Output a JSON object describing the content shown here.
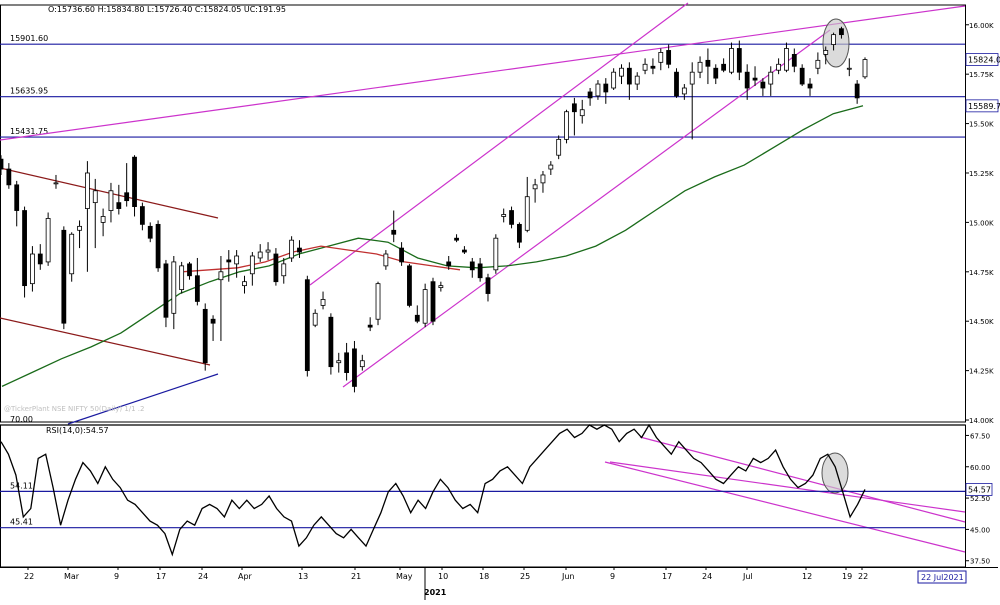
{
  "ohlc_header": "O:15736.60  H:15834.80  L:15726.40  C:15824.05  UC:191.95",
  "watermark": "@TickerPlant NSE NIFTY 50(Daily) 1/1 .2",
  "rsi_label": "RSI(14,0):54.57",
  "date_box": "22 Jul2021",
  "colors": {
    "frame": "#000000",
    "level": "#1a1aa0",
    "channel": "#cc33cc",
    "downtrend": "#8b1a1a",
    "uptrend": "#1a1aa0",
    "ma_long": "#1a6b1a",
    "ma_short": "#c03030",
    "highlight": "#c8c8c8"
  },
  "chart_data": [
    {
      "type": "candlestick",
      "title": "NSE NIFTY 50 (Daily)",
      "ylim": [
        13990,
        16100
      ],
      "yticks": [
        14000,
        14250,
        14500,
        14750,
        15000,
        15250,
        15500,
        15750,
        16000
      ],
      "ytick_labels": [
        "14.00K",
        "14.25K",
        "14.50K",
        "14.75K",
        "15.00K",
        "15.25K",
        "15.50K",
        "15.75K",
        "16.00K"
      ],
      "levels": [
        {
          "value": 15901.6,
          "label": "15901.60"
        },
        {
          "value": 15635.95,
          "label": "15635.95"
        },
        {
          "value": 15431.75,
          "label": "15431.75"
        }
      ],
      "right_labels": [
        {
          "value": 15824.05,
          "label": "15824.0"
        },
        {
          "value": 15589.7,
          "label": "15589.7"
        }
      ],
      "candles": [
        {
          "o": 15320,
          "h": 15340,
          "l": 15240,
          "c": 15270
        },
        {
          "o": 15270,
          "h": 15300,
          "l": 15170,
          "c": 15190
        },
        {
          "o": 15190,
          "h": 15210,
          "l": 14980,
          "c": 15060
        },
        {
          "o": 15060,
          "h": 15080,
          "l": 14620,
          "c": 14680
        },
        {
          "o": 14690,
          "h": 14880,
          "l": 14650,
          "c": 14840
        },
        {
          "o": 14840,
          "h": 14890,
          "l": 14760,
          "c": 14790
        },
        {
          "o": 14800,
          "h": 15050,
          "l": 14780,
          "c": 15020
        },
        {
          "o": 15200,
          "h": 15240,
          "l": 15170,
          "c": 15200
        },
        {
          "o": 14960,
          "h": 14980,
          "l": 14460,
          "c": 14490
        },
        {
          "o": 14740,
          "h": 14950,
          "l": 14700,
          "c": 14940
        },
        {
          "o": 14960,
          "h": 15010,
          "l": 14870,
          "c": 14980
        },
        {
          "o": 15070,
          "h": 15310,
          "l": 14750,
          "c": 15250
        },
        {
          "o": 15100,
          "h": 15220,
          "l": 14870,
          "c": 15160
        },
        {
          "o": 15000,
          "h": 15070,
          "l": 14930,
          "c": 15030
        },
        {
          "o": 15060,
          "h": 15200,
          "l": 15000,
          "c": 15160
        },
        {
          "o": 15100,
          "h": 15190,
          "l": 15040,
          "c": 15070
        },
        {
          "o": 15150,
          "h": 15300,
          "l": 15080,
          "c": 15110
        },
        {
          "o": 15330,
          "h": 15340,
          "l": 15030,
          "c": 15080
        },
        {
          "o": 15080,
          "h": 15100,
          "l": 14960,
          "c": 14990
        },
        {
          "o": 14980,
          "h": 15000,
          "l": 14900,
          "c": 14920
        },
        {
          "o": 14990,
          "h": 15010,
          "l": 14750,
          "c": 14770
        },
        {
          "o": 14790,
          "h": 14810,
          "l": 14470,
          "c": 14520
        },
        {
          "o": 14540,
          "h": 14830,
          "l": 14460,
          "c": 14800
        },
        {
          "o": 14660,
          "h": 14800,
          "l": 14640,
          "c": 14780
        },
        {
          "o": 14790,
          "h": 14800,
          "l": 14710,
          "c": 14730
        },
        {
          "o": 14730,
          "h": 14820,
          "l": 14580,
          "c": 14600
        },
        {
          "o": 14560,
          "h": 14590,
          "l": 14250,
          "c": 14290
        },
        {
          "o": 14510,
          "h": 14530,
          "l": 14400,
          "c": 14490
        },
        {
          "o": 14710,
          "h": 14830,
          "l": 14400,
          "c": 14750
        },
        {
          "o": 14810,
          "h": 14860,
          "l": 14700,
          "c": 14800
        },
        {
          "o": 14790,
          "h": 14860,
          "l": 14720,
          "c": 14830
        },
        {
          "o": 14680,
          "h": 14730,
          "l": 14640,
          "c": 14700
        },
        {
          "o": 14740,
          "h": 14850,
          "l": 14680,
          "c": 14830
        },
        {
          "o": 14820,
          "h": 14890,
          "l": 14800,
          "c": 14850
        },
        {
          "o": 14850,
          "h": 14900,
          "l": 14810,
          "c": 14860
        },
        {
          "o": 14840,
          "h": 14870,
          "l": 14680,
          "c": 14700
        },
        {
          "o": 14730,
          "h": 14820,
          "l": 14690,
          "c": 14790
        },
        {
          "o": 14820,
          "h": 14930,
          "l": 14800,
          "c": 14910
        },
        {
          "o": 14870,
          "h": 14910,
          "l": 14820,
          "c": 14850
        },
        {
          "o": 14710,
          "h": 14730,
          "l": 14220,
          "c": 14250
        },
        {
          "o": 14480,
          "h": 14560,
          "l": 14470,
          "c": 14540
        },
        {
          "o": 14580,
          "h": 14650,
          "l": 14560,
          "c": 14610
        },
        {
          "o": 14520,
          "h": 14540,
          "l": 14230,
          "c": 14270
        },
        {
          "o": 14290,
          "h": 14340,
          "l": 14240,
          "c": 14300
        },
        {
          "o": 14340,
          "h": 14390,
          "l": 14200,
          "c": 14240
        },
        {
          "o": 14360,
          "h": 14400,
          "l": 14140,
          "c": 14170
        },
        {
          "o": 14270,
          "h": 14330,
          "l": 14250,
          "c": 14300
        },
        {
          "o": 14480,
          "h": 14520,
          "l": 14450,
          "c": 14470
        },
        {
          "o": 14510,
          "h": 14700,
          "l": 14480,
          "c": 14690
        },
        {
          "o": 14780,
          "h": 14860,
          "l": 14760,
          "c": 14840
        },
        {
          "o": 14960,
          "h": 15060,
          "l": 14900,
          "c": 14940
        },
        {
          "o": 14870,
          "h": 14900,
          "l": 14780,
          "c": 14800
        },
        {
          "o": 14780,
          "h": 14790,
          "l": 14570,
          "c": 14580
        },
        {
          "o": 14530,
          "h": 14580,
          "l": 14490,
          "c": 14500
        },
        {
          "o": 14490,
          "h": 14690,
          "l": 14470,
          "c": 14660
        },
        {
          "o": 14700,
          "h": 14720,
          "l": 14480,
          "c": 14500
        },
        {
          "o": 14670,
          "h": 14700,
          "l": 14650,
          "c": 14680
        },
        {
          "o": 14800,
          "h": 14830,
          "l": 14760,
          "c": 14780
        },
        {
          "o": 14920,
          "h": 14940,
          "l": 14900,
          "c": 14910
        },
        {
          "o": 14860,
          "h": 14880,
          "l": 14840,
          "c": 14850
        },
        {
          "o": 14800,
          "h": 14820,
          "l": 14720,
          "c": 14760
        },
        {
          "o": 14790,
          "h": 14820,
          "l": 14700,
          "c": 14720
        },
        {
          "o": 14720,
          "h": 14740,
          "l": 14600,
          "c": 14640
        },
        {
          "o": 14760,
          "h": 14940,
          "l": 14740,
          "c": 14920
        },
        {
          "o": 15030,
          "h": 15070,
          "l": 15000,
          "c": 15040
        },
        {
          "o": 15060,
          "h": 15080,
          "l": 14970,
          "c": 14990
        },
        {
          "o": 14990,
          "h": 15000,
          "l": 14870,
          "c": 14900
        },
        {
          "o": 14960,
          "h": 15230,
          "l": 14950,
          "c": 15130
        },
        {
          "o": 15170,
          "h": 15220,
          "l": 15100,
          "c": 15190
        },
        {
          "o": 15200,
          "h": 15260,
          "l": 15150,
          "c": 15240
        },
        {
          "o": 15270,
          "h": 15310,
          "l": 15240,
          "c": 15290
        },
        {
          "o": 15340,
          "h": 15440,
          "l": 15320,
          "c": 15420
        },
        {
          "o": 15420,
          "h": 15570,
          "l": 15400,
          "c": 15560
        },
        {
          "o": 15600,
          "h": 15630,
          "l": 15440,
          "c": 15560
        },
        {
          "o": 15540,
          "h": 15620,
          "l": 15500,
          "c": 15570
        },
        {
          "o": 15660,
          "h": 15680,
          "l": 15590,
          "c": 15630
        },
        {
          "o": 15640,
          "h": 15720,
          "l": 15620,
          "c": 15700
        },
        {
          "o": 15700,
          "h": 15730,
          "l": 15600,
          "c": 15660
        },
        {
          "o": 15680,
          "h": 15780,
          "l": 15670,
          "c": 15760
        },
        {
          "o": 15740,
          "h": 15800,
          "l": 15700,
          "c": 15780
        },
        {
          "o": 15780,
          "h": 15810,
          "l": 15620,
          "c": 15700
        },
        {
          "o": 15700,
          "h": 15760,
          "l": 15670,
          "c": 15740
        },
        {
          "o": 15770,
          "h": 15830,
          "l": 15750,
          "c": 15800
        },
        {
          "o": 15790,
          "h": 15830,
          "l": 15750,
          "c": 15780
        },
        {
          "o": 15810,
          "h": 15880,
          "l": 15770,
          "c": 15860
        },
        {
          "o": 15870,
          "h": 15900,
          "l": 15780,
          "c": 15800
        },
        {
          "o": 15760,
          "h": 15780,
          "l": 15630,
          "c": 15640
        },
        {
          "o": 15650,
          "h": 15700,
          "l": 15620,
          "c": 15680
        },
        {
          "o": 15700,
          "h": 15810,
          "l": 15420,
          "c": 15760
        },
        {
          "o": 15760,
          "h": 15840,
          "l": 15730,
          "c": 15810
        },
        {
          "o": 15820,
          "h": 15880,
          "l": 15700,
          "c": 15790
        },
        {
          "o": 15780,
          "h": 15800,
          "l": 15700,
          "c": 15730
        },
        {
          "o": 15800,
          "h": 15830,
          "l": 15760,
          "c": 15770
        },
        {
          "o": 15760,
          "h": 15910,
          "l": 15750,
          "c": 15880
        },
        {
          "o": 15880,
          "h": 15920,
          "l": 15720,
          "c": 15760
        },
        {
          "o": 15760,
          "h": 15800,
          "l": 15620,
          "c": 15680
        },
        {
          "o": 15730,
          "h": 15790,
          "l": 15690,
          "c": 15720
        },
        {
          "o": 15710,
          "h": 15730,
          "l": 15640,
          "c": 15680
        },
        {
          "o": 15700,
          "h": 15790,
          "l": 15640,
          "c": 15760
        },
        {
          "o": 15770,
          "h": 15830,
          "l": 15750,
          "c": 15800
        },
        {
          "o": 15770,
          "h": 15910,
          "l": 15760,
          "c": 15880
        },
        {
          "o": 15850,
          "h": 15880,
          "l": 15760,
          "c": 15790
        },
        {
          "o": 15780,
          "h": 15800,
          "l": 15690,
          "c": 15700
        },
        {
          "o": 15700,
          "h": 15730,
          "l": 15640,
          "c": 15680
        },
        {
          "o": 15780,
          "h": 15860,
          "l": 15750,
          "c": 15820
        },
        {
          "o": 15850,
          "h": 15890,
          "l": 15800,
          "c": 15870
        },
        {
          "o": 15900,
          "h": 15960,
          "l": 15870,
          "c": 15950
        },
        {
          "o": 15980,
          "h": 15990,
          "l": 15930,
          "c": 15950
        },
        {
          "o": 15780,
          "h": 15830,
          "l": 15740,
          "c": 15780
        },
        {
          "o": 15700,
          "h": 15720,
          "l": 15600,
          "c": 15630
        },
        {
          "o": 15736.6,
          "h": 15834.8,
          "l": 15726.4,
          "c": 15824.05
        }
      ],
      "ma_long": [
        14170,
        14240,
        14310,
        14370,
        14440,
        14540,
        14640,
        14700,
        14750,
        14780,
        14840,
        14880,
        14920,
        14900,
        14820,
        14780,
        14770,
        14780,
        14800,
        14830,
        14880,
        14960,
        15060,
        15160,
        15230,
        15290,
        15380,
        15470,
        15550,
        15590
      ],
      "ma_short": [
        14750,
        14760,
        14770,
        14800,
        14850,
        14880,
        14860,
        14840,
        14800,
        14780,
        14760
      ],
      "x_labels": [
        "22",
        "Mar",
        "9",
        "17",
        "24",
        "Apr",
        "13",
        "21",
        "May",
        "10",
        "18",
        "25",
        "Jun",
        "9",
        "17",
        "24",
        "Jul",
        "12",
        "19",
        "22"
      ],
      "x_year": "2021"
    },
    {
      "type": "line",
      "title": "RSI(14,0):54.57",
      "ylim": [
        36,
        70
      ],
      "yticks": [
        37.5,
        45,
        52.5,
        60,
        67.5
      ],
      "ytick_labels": [
        "37.50",
        "45.00",
        "52.50",
        "60.00",
        "67.50"
      ],
      "levels": [
        {
          "value": 70,
          "label": "70.00"
        },
        {
          "value": 54.11,
          "label": "54.11"
        },
        {
          "value": 45.41,
          "label": "45.41"
        }
      ],
      "right_label": "54.57",
      "values": [
        66,
        63,
        58,
        48,
        50,
        62,
        63,
        55,
        46,
        52,
        57,
        61,
        59,
        56,
        60,
        57,
        55,
        52,
        51,
        49,
        47,
        46,
        44,
        39,
        45,
        47,
        46,
        50,
        51,
        50,
        48,
        52,
        50,
        52,
        50,
        51,
        53,
        50,
        48,
        47,
        41,
        43,
        46,
        48,
        46,
        44,
        43,
        45,
        43,
        41,
        45,
        49,
        54,
        56,
        53,
        49,
        52,
        50,
        54,
        57,
        55,
        52,
        50,
        51,
        49,
        56,
        57,
        59,
        60,
        58,
        56,
        60,
        62,
        64,
        66,
        68,
        69,
        67,
        68,
        70,
        69,
        70,
        69,
        66,
        68,
        69,
        67,
        70,
        67,
        65,
        63,
        66,
        64,
        62,
        61,
        59,
        57,
        56,
        58,
        60,
        59,
        62,
        61,
        62,
        64,
        60,
        57,
        55,
        56,
        58,
        62,
        63,
        60,
        54,
        48,
        51,
        54.57
      ]
    }
  ]
}
